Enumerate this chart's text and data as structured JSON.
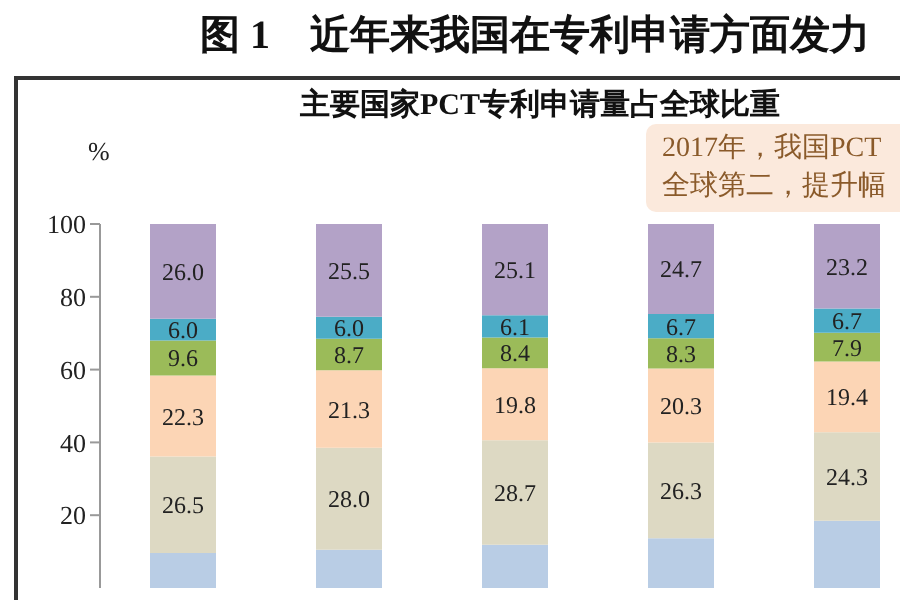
{
  "chart_data": {
    "type": "bar",
    "title": "图 1　近年来我国在专利申请方面发力",
    "subtitle": "主要国家PCT专利申请量占全球比重",
    "ylabel": "%",
    "annotations": [
      "2017年，我国PCT",
      "全球第二，提升幅"
    ],
    "categories": [
      null,
      null,
      null,
      null,
      null
    ],
    "stacked": true,
    "tick_labels": "y",
    "ylim": [
      0,
      100
    ],
    "yticks": [
      20,
      40,
      60,
      80,
      100
    ],
    "series": [
      {
        "color": "#b9cde5",
        "values": [
          9.6,
          10.5,
          11.9,
          13.7,
          18.5
        ],
        "value_labels": [
          null,
          null,
          null,
          null,
          null
        ]
      },
      {
        "color": "#ddd9c3",
        "values": [
          26.5,
          28.0,
          28.7,
          26.3,
          24.3
        ],
        "value_labels": [
          "26.5",
          "28.0",
          "28.7",
          "26.3",
          "24.3"
        ]
      },
      {
        "color": "#fcd5b5",
        "values": [
          22.3,
          21.3,
          19.8,
          20.3,
          19.4
        ],
        "value_labels": [
          "22.3",
          "21.3",
          "19.8",
          "20.3",
          "19.4"
        ]
      },
      {
        "color": "#9bbb59",
        "values": [
          9.6,
          8.7,
          8.4,
          8.3,
          7.9
        ],
        "value_labels": [
          "9.6",
          "8.7",
          "8.4",
          "8.3",
          "7.9"
        ]
      },
      {
        "color": "#4bacc6",
        "values": [
          6.0,
          6.0,
          6.1,
          6.7,
          6.7
        ],
        "value_labels": [
          "6.0",
          "6.0",
          "6.1",
          "6.7",
          "6.7"
        ]
      },
      {
        "color": "#b3a2c7",
        "values": [
          26.0,
          25.5,
          25.1,
          24.7,
          23.2
        ],
        "value_labels": [
          "26.0",
          "25.5",
          "25.1",
          "24.7",
          "23.2"
        ]
      }
    ]
  }
}
